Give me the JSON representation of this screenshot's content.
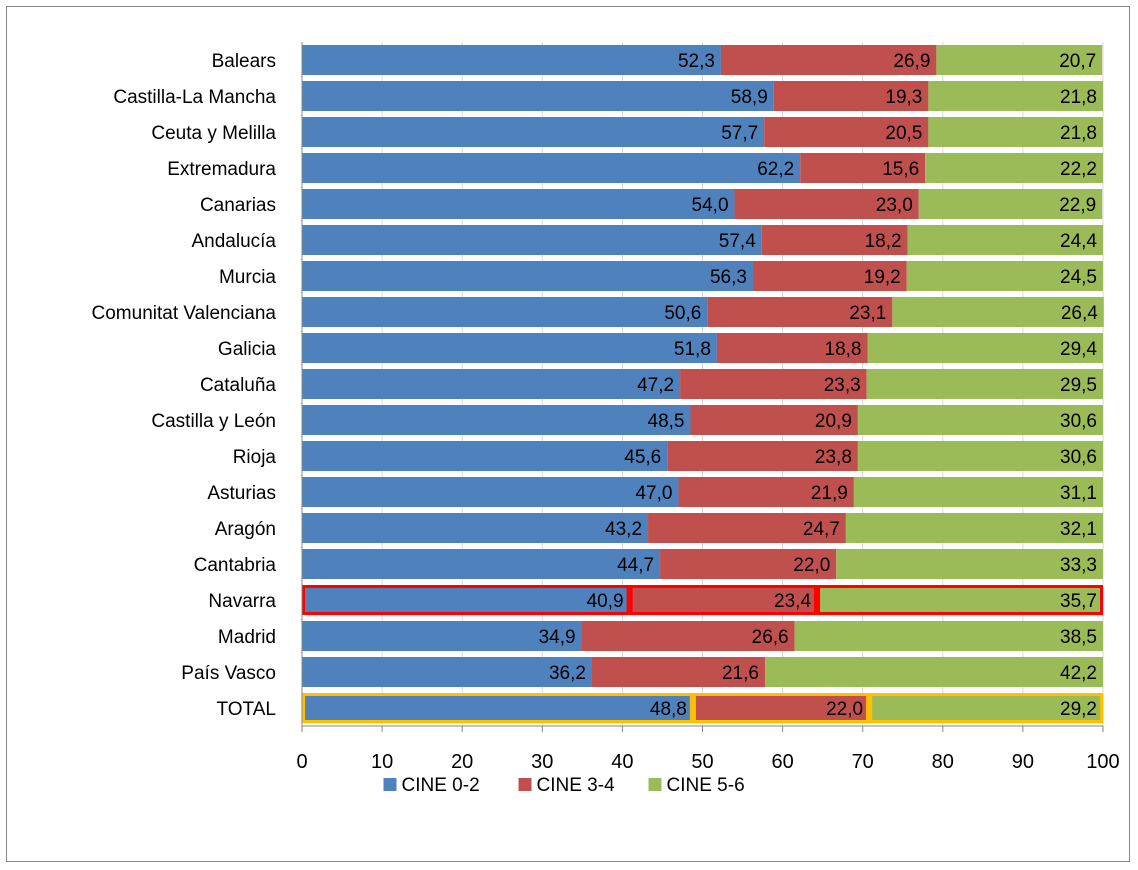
{
  "chart_data": {
    "type": "bar",
    "orientation": "horizontal",
    "stacked": true,
    "title": "",
    "xlabel": "",
    "ylabel": "",
    "xlim": [
      0,
      100
    ],
    "x_ticks": [
      "0",
      "10",
      "20",
      "30",
      "40",
      "50",
      "60",
      "70",
      "80",
      "90",
      "100"
    ],
    "categories": [
      "Balears",
      "Castilla-La Mancha",
      "Ceuta y Melilla",
      "Extremadura",
      "Canarias",
      "Andalucía",
      "Murcia",
      "Comunitat Valenciana",
      "Galicia",
      "Cataluña",
      "Castilla y León",
      "Rioja",
      "Asturias",
      "Aragón",
      "Cantabria",
      "Navarra",
      "Madrid",
      "País Vasco",
      "TOTAL"
    ],
    "series": [
      {
        "name": "CINE 0-2",
        "color": "#4f81bd",
        "values": [
          52.3,
          58.9,
          57.7,
          62.2,
          54.0,
          57.4,
          56.3,
          50.6,
          51.8,
          47.2,
          48.5,
          45.6,
          47.0,
          43.2,
          44.7,
          40.9,
          34.9,
          36.2,
          48.8
        ],
        "labels": [
          "52,3",
          "58,9",
          "57,7",
          "62,2",
          "54,0",
          "57,4",
          "56,3",
          "50,6",
          "51,8",
          "47,2",
          "48,5",
          "45,6",
          "47,0",
          "43,2",
          "44,7",
          "40,9",
          "34,9",
          "36,2",
          "48,8"
        ]
      },
      {
        "name": "CINE 3-4",
        "color": "#c0504d",
        "values": [
          26.9,
          19.3,
          20.5,
          15.6,
          23.0,
          18.2,
          19.2,
          23.1,
          18.8,
          23.3,
          20.9,
          23.8,
          21.9,
          24.7,
          22.0,
          23.4,
          26.6,
          21.6,
          22.0
        ],
        "labels": [
          "26,9",
          "19,3",
          "20,5",
          "15,6",
          "23,0",
          "18,2",
          "19,2",
          "23,1",
          "18,8",
          "23,3",
          "20,9",
          "23,8",
          "21,9",
          "24,7",
          "22,0",
          "23,4",
          "26,6",
          "21,6",
          "22,0"
        ]
      },
      {
        "name": "CINE 5-6",
        "color": "#9bbb59",
        "values": [
          20.7,
          21.8,
          21.8,
          22.2,
          22.9,
          24.4,
          24.5,
          26.4,
          29.4,
          29.5,
          30.6,
          30.6,
          31.1,
          32.1,
          33.3,
          35.7,
          38.5,
          42.2,
          29.2
        ],
        "labels": [
          "20,7",
          "21,8",
          "21,8",
          "22,2",
          "22,9",
          "24,4",
          "24,5",
          "26,4",
          "29,4",
          "29,5",
          "30,6",
          "30,6",
          "31,1",
          "32,1",
          "33,3",
          "35,7",
          "38,5",
          "42,2",
          "29,2"
        ]
      }
    ],
    "highlights": [
      {
        "category": "Navarra",
        "color": "#ff0000"
      },
      {
        "category": "TOTAL",
        "color": "#ffc000"
      }
    ],
    "grid": true,
    "legend_position": "bottom"
  }
}
